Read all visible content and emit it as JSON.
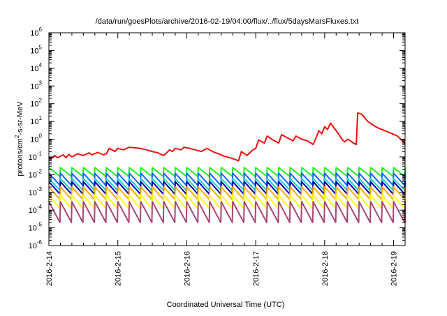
{
  "chart_data": {
    "type": "line",
    "title": "/data/run/goesPlots/archive/2016-02-19/04:00/flux/../flux/5daysMarsFluxes.txt",
    "xlabel": "Coordinated Universal Time (UTC)",
    "ylabel": "protons/cm2-s-sr-MeV",
    "ylabel_parts": {
      "base": "protons/cm",
      "sup": "2",
      "rest": "-s-sr-MeV"
    },
    "yscale": "log",
    "ylim": [
      1e-06,
      1000000.0
    ],
    "xlim": [
      "2016-02-14 00:00",
      "2016-02-19 04:00"
    ],
    "x_ticks": [
      "2016-2-14",
      "2016-2-15",
      "2016-2-16",
      "2016-2-17",
      "2016-2-18",
      "2016-2-19"
    ],
    "y_ticks": [
      {
        "base": "10",
        "exp": "-6",
        "value": 1e-06
      },
      {
        "base": "10",
        "exp": "-5",
        "value": 1e-05
      },
      {
        "base": "10",
        "exp": "-4",
        "value": 0.0001
      },
      {
        "base": "10",
        "exp": "-3",
        "value": 0.001
      },
      {
        "base": "10",
        "exp": "-2",
        "value": 0.01
      },
      {
        "base": "10",
        "exp": "-1",
        "value": 0.1
      },
      {
        "base": "10",
        "exp": "0",
        "value": 1
      },
      {
        "base": "10",
        "exp": "1",
        "value": 10
      },
      {
        "base": "10",
        "exp": "2",
        "value": 100
      },
      {
        "base": "10",
        "exp": "3",
        "value": 1000
      },
      {
        "base": "10",
        "exp": "4",
        "value": 10000
      },
      {
        "base": "10",
        "exp": "5",
        "value": 100000
      },
      {
        "base": "10",
        "exp": "6",
        "value": 1000000
      }
    ],
    "grid": false,
    "legend": "none",
    "series": [
      {
        "color": "#ee1111",
        "points": [
          [
            "2016-02-14 00:00",
            0.1
          ],
          [
            "2016-02-14 01:00",
            0.08
          ],
          [
            "2016-02-14 02:00",
            0.12
          ],
          [
            "2016-02-14 03:00",
            0.09
          ],
          [
            "2016-02-14 04:00",
            0.11
          ],
          [
            "2016-02-14 05:00",
            0.13
          ],
          [
            "2016-02-14 06:00",
            0.09
          ],
          [
            "2016-02-14 07:00",
            0.14
          ],
          [
            "2016-02-14 08:00",
            0.1
          ],
          [
            "2016-02-14 10:00",
            0.15
          ],
          [
            "2016-02-14 12:00",
            0.12
          ],
          [
            "2016-02-14 14:00",
            0.17
          ],
          [
            "2016-02-14 15:00",
            0.13
          ],
          [
            "2016-02-14 17:00",
            0.18
          ],
          [
            "2016-02-14 19:00",
            0.13
          ],
          [
            "2016-02-14 20:00",
            0.15
          ],
          [
            "2016-02-14 21:00",
            0.3
          ],
          [
            "2016-02-14 22:00",
            0.25
          ],
          [
            "2016-02-14 23:00",
            0.2
          ],
          [
            "2016-02-15 00:00",
            0.3
          ],
          [
            "2016-02-15 02:00",
            0.25
          ],
          [
            "2016-02-15 04:00",
            0.35
          ],
          [
            "2016-02-15 08:00",
            0.3
          ],
          [
            "2016-02-15 10:00",
            0.25
          ],
          [
            "2016-02-15 12:00",
            0.2
          ],
          [
            "2016-02-15 14:00",
            0.17
          ],
          [
            "2016-02-15 15:00",
            0.14
          ],
          [
            "2016-02-15 16:00",
            0.12
          ],
          [
            "2016-02-15 17:00",
            0.17
          ],
          [
            "2016-02-15 18:00",
            0.25
          ],
          [
            "2016-02-15 19:00",
            0.2
          ],
          [
            "2016-02-15 20:00",
            0.3
          ],
          [
            "2016-02-15 22:00",
            0.25
          ],
          [
            "2016-02-15 23:00",
            0.35
          ],
          [
            "2016-02-16 01:00",
            0.3
          ],
          [
            "2016-02-16 03:00",
            0.25
          ],
          [
            "2016-02-16 05:00",
            0.2
          ],
          [
            "2016-02-16 07:00",
            0.3
          ],
          [
            "2016-02-16 09:00",
            0.2
          ],
          [
            "2016-02-16 11:00",
            0.15
          ],
          [
            "2016-02-16 13:00",
            0.11
          ],
          [
            "2016-02-16 15:00",
            0.09
          ],
          [
            "2016-02-16 17:00",
            0.07
          ],
          [
            "2016-02-16 18:00",
            0.06
          ],
          [
            "2016-02-16 19:00",
            0.2
          ],
          [
            "2016-02-16 21:00",
            0.12
          ],
          [
            "2016-02-16 23:00",
            0.25
          ],
          [
            "2016-02-17 00:00",
            0.3
          ],
          [
            "2016-02-17 01:00",
            0.9
          ],
          [
            "2016-02-17 03:00",
            0.6
          ],
          [
            "2016-02-17 04:00",
            1.5
          ],
          [
            "2016-02-17 06:00",
            0.9
          ],
          [
            "2016-02-17 08:00",
            0.6
          ],
          [
            "2016-02-17 09:00",
            1.8
          ],
          [
            "2016-02-17 11:00",
            1.2
          ],
          [
            "2016-02-17 13:00",
            0.8
          ],
          [
            "2016-02-17 14:00",
            1.5
          ],
          [
            "2016-02-17 16:00",
            1.0
          ],
          [
            "2016-02-17 18:00",
            0.8
          ],
          [
            "2016-02-17 20:00",
            0.5
          ],
          [
            "2016-02-17 21:00",
            1.2
          ],
          [
            "2016-02-17 22:00",
            3.0
          ],
          [
            "2016-02-17 23:00",
            2.0
          ],
          [
            "2016-02-18 00:00",
            5.0
          ],
          [
            "2016-02-18 01:00",
            3.5
          ],
          [
            "2016-02-18 02:00",
            8.0
          ],
          [
            "2016-02-18 03:00",
            5.0
          ],
          [
            "2016-02-18 04:00",
            3.0
          ],
          [
            "2016-02-18 05:00",
            1.8
          ],
          [
            "2016-02-18 06:00",
            1.0
          ],
          [
            "2016-02-18 07:00",
            0.7
          ],
          [
            "2016-02-18 08:00",
            1.0
          ],
          [
            "2016-02-18 09:00",
            0.8
          ],
          [
            "2016-02-18 10:00",
            0.6
          ],
          [
            "2016-02-18 11:00",
            0.5
          ],
          [
            "2016-02-18 11:30",
            30.0
          ],
          [
            "2016-02-18 13:00",
            25.0
          ],
          [
            "2016-02-18 15:00",
            10.0
          ],
          [
            "2016-02-18 17:00",
            6.0
          ],
          [
            "2016-02-18 19:00",
            4.0
          ],
          [
            "2016-02-18 21:00",
            3.0
          ],
          [
            "2016-02-18 23:00",
            2.2
          ],
          [
            "2016-02-19 01:00",
            1.6
          ],
          [
            "2016-02-19 02:00",
            1.2
          ],
          [
            "2016-02-19 03:00",
            0.8
          ],
          [
            "2016-02-19 04:00",
            0.55
          ]
        ]
      },
      {
        "color": "#22ee22",
        "sawtooth": {
          "peak": 0.025,
          "trough": 0.008,
          "period_hours": 4
        }
      },
      {
        "color": "#1166ff",
        "sawtooth": {
          "peak": 0.012,
          "trough": 0.0025,
          "period_hours": 4
        }
      },
      {
        "color": "#22cccc",
        "sawtooth": {
          "peak": 0.006,
          "trough": 0.0013,
          "period_hours": 4
        }
      },
      {
        "color": "#0000aa",
        "sawtooth": {
          "peak": 0.004,
          "trough": 0.0008,
          "period_hours": 4
        }
      },
      {
        "color": "#ffaa00",
        "sawtooth": {
          "peak": 0.002,
          "trough": 0.0004,
          "period_hours": 4
        }
      },
      {
        "color": "#ffff22",
        "sawtooth": {
          "peak": 0.0007,
          "trough": 0.00012,
          "period_hours": 4
        }
      },
      {
        "color": "#aa4477",
        "sawtooth": {
          "peak": 0.0003,
          "trough": 2e-05,
          "period_hours": 4
        }
      }
    ]
  }
}
